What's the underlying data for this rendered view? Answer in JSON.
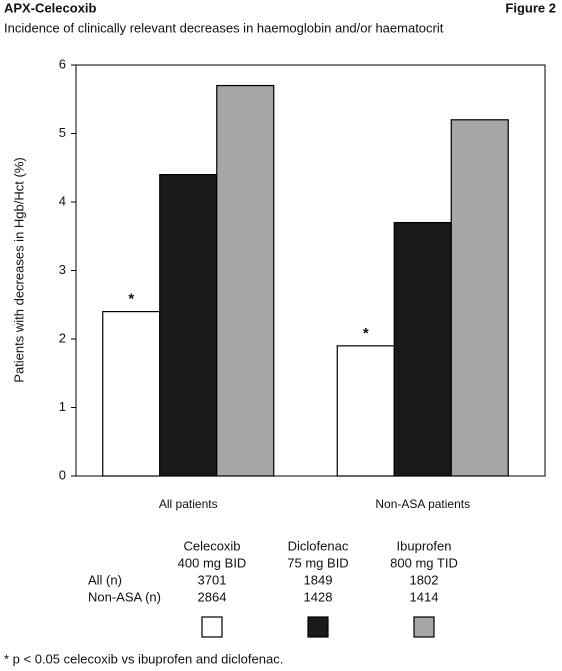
{
  "chart_data": {
    "type": "bar",
    "title": "APX-Celecoxib",
    "figure_label": "Figure 2",
    "subtitle": "Incidence of clinically relevant decreases in haemoglobin and/or haematocrit",
    "ylabel": "Patients with decreases in Hgb/Hct (%)",
    "categories": [
      "All patients",
      "Non-ASA patients"
    ],
    "series": [
      {
        "name": "Celecoxib",
        "dose": "400 mg BID",
        "color": "#ffffff",
        "values": [
          2.4,
          1.9
        ],
        "significance": [
          "*",
          "*"
        ]
      },
      {
        "name": "Diclofenac",
        "dose": "75 mg BID",
        "color": "#1a1a1a",
        "values": [
          4.4,
          3.7
        ]
      },
      {
        "name": "Ibuprofen",
        "dose": "800 mg TID",
        "color": "#a6a6a6",
        "values": [
          5.7,
          5.2
        ]
      }
    ],
    "ylim": [
      0,
      6
    ],
    "yticks": [
      0,
      1,
      2,
      3,
      4,
      5,
      6
    ],
    "grid": false,
    "table": {
      "row_labels": [
        "All (n)",
        "Non-ASA (n)"
      ],
      "rows": [
        [
          3701,
          1849,
          1802
        ],
        [
          2864,
          1428,
          1414
        ]
      ]
    },
    "footnote": "* p < 0.05 celecoxib vs ibuprofen and diclofenac."
  }
}
